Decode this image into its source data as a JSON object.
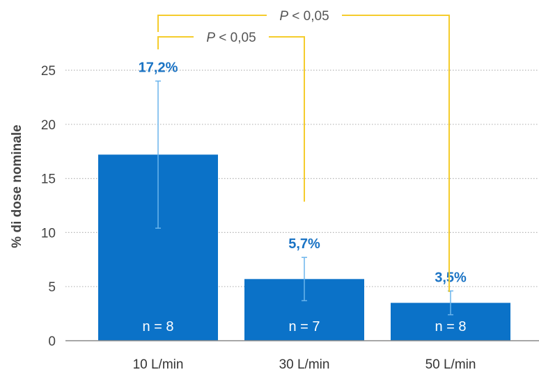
{
  "chart_data": {
    "type": "bar",
    "ylabel": "% di dose nominale",
    "xlabel": "",
    "ylim": [
      0,
      25
    ],
    "yticks": [
      0,
      5,
      10,
      15,
      20,
      25
    ],
    "grid": "horizontal-dotted",
    "categories": [
      "10 L/min",
      "30 L/min",
      "50 L/min"
    ],
    "values": [
      17.2,
      5.7,
      3.5
    ],
    "value_labels": [
      "17,2%",
      "5,7%",
      "3,5%"
    ],
    "error_bars": [
      {
        "low": 10.4,
        "high": 24.0
      },
      {
        "low": 3.7,
        "high": 7.7
      },
      {
        "low": 2.4,
        "high": 4.6
      }
    ],
    "n_labels": [
      "n = 8",
      "n = 7",
      "n = 8"
    ],
    "significance": [
      {
        "from": 0,
        "to": 2,
        "italic": "P",
        "text": " < 0,05"
      },
      {
        "from": 0,
        "to": 1,
        "italic": "P",
        "text": " < 0,05"
      }
    ],
    "colors": {
      "bar": "#0b72c8",
      "error": "#6ab4ec",
      "value_text": "#1a73c4",
      "bracket": "#f5cc2c",
      "grid": "#b5b5b5",
      "axis": "#8a8a8a"
    }
  }
}
